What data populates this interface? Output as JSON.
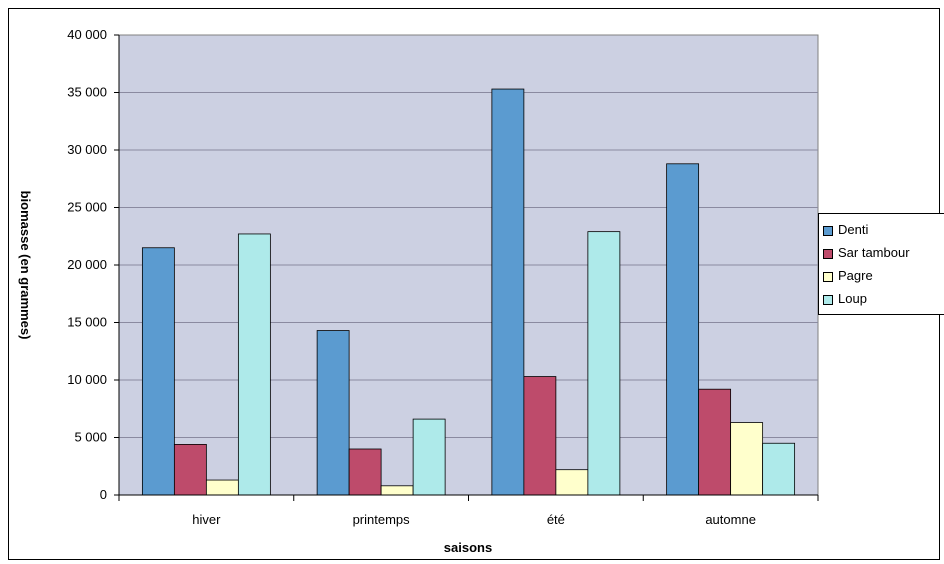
{
  "chart_data": {
    "type": "bar",
    "categories": [
      "hiver",
      "printemps",
      "été",
      "automne"
    ],
    "series": [
      {
        "name": "Denti",
        "color": "#5b9bd0",
        "values": [
          21500,
          14300,
          35300,
          28800
        ]
      },
      {
        "name": "Sar tambour",
        "color": "#be4b6b",
        "values": [
          4400,
          4000,
          10300,
          9200
        ]
      },
      {
        "name": "Pagre",
        "color": "#ffffcc",
        "values": [
          1300,
          800,
          2200,
          6300
        ]
      },
      {
        "name": "Loup",
        "color": "#aeeaea",
        "values": [
          22700,
          6600,
          22900,
          4500
        ]
      }
    ],
    "ylim": [
      0,
      40000
    ],
    "yticks": [
      "0",
      "5 000",
      "10 000",
      "15 000",
      "20 000",
      "25 000",
      "30 000",
      "35 000",
      "40 000"
    ],
    "xlabel": "saisons",
    "ylabel": "biomasse (en grammes)",
    "grid": true,
    "legend_position": "right",
    "plot_background": "#ccd0e2"
  }
}
